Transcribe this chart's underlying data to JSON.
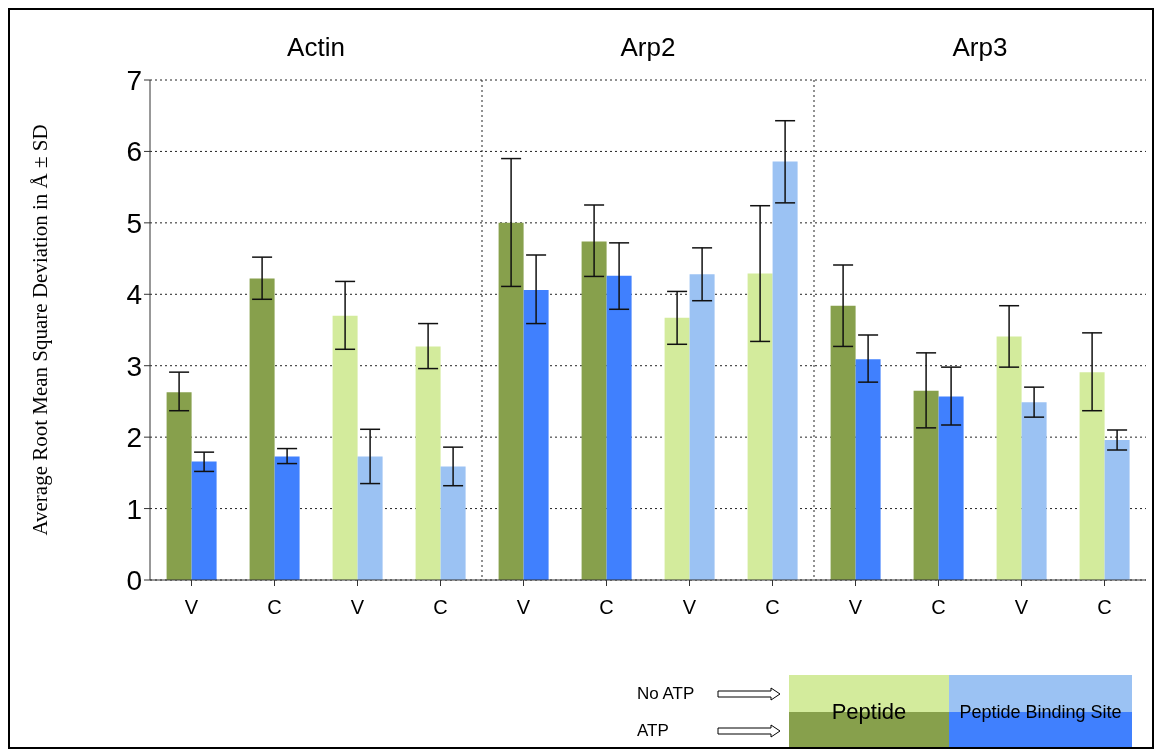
{
  "chart_data": {
    "type": "bar",
    "ylabel": "Average Root Mean Square Deviation in Å ± SD",
    "categories": [
      "V",
      "C",
      "V",
      "C",
      "V",
      "C",
      "V",
      "C",
      "V",
      "C",
      "V",
      "C"
    ],
    "series": [
      {
        "name": "Peptide",
        "colors": [
          "#87a04c",
          "#87a04c",
          "#d3eb9c",
          "#d3eb9c",
          "#87a04c",
          "#87a04c",
          "#d3eb9c",
          "#d3eb9c",
          "#87a04c",
          "#87a04c",
          "#d3eb9c",
          "#d3eb9c"
        ],
        "values": [
          2.63,
          4.22,
          3.7,
          3.27,
          5.0,
          4.74,
          3.67,
          4.29,
          3.84,
          2.65,
          3.41,
          2.91
        ],
        "errors": [
          [
            2.37,
            2.91
          ],
          [
            3.93,
            4.52
          ],
          [
            3.23,
            4.18
          ],
          [
            2.96,
            3.59
          ],
          [
            4.11,
            5.9
          ],
          [
            4.25,
            5.25
          ],
          [
            3.3,
            4.04
          ],
          [
            3.34,
            5.24
          ],
          [
            3.27,
            4.41
          ],
          [
            2.13,
            3.18
          ],
          [
            2.98,
            3.84
          ],
          [
            2.37,
            3.46
          ]
        ]
      },
      {
        "name": "Peptide Binding Site",
        "colors": [
          "#4080fe",
          "#4080fe",
          "#9bc2f3",
          "#9bc2f3",
          "#4080fe",
          "#4080fe",
          "#9bc2f3",
          "#9bc2f3",
          "#4080fe",
          "#4080fe",
          "#9bc2f3",
          "#9bc2f3"
        ],
        "values": [
          1.66,
          1.73,
          1.73,
          1.59,
          4.06,
          4.26,
          4.28,
          5.86,
          3.09,
          2.57,
          2.49,
          1.96
        ],
        "errors": [
          [
            1.52,
            1.79
          ],
          [
            1.63,
            1.84
          ],
          [
            1.35,
            2.11
          ],
          [
            1.32,
            1.86
          ],
          [
            3.59,
            4.55
          ],
          [
            3.79,
            4.72
          ],
          [
            3.91,
            4.65
          ],
          [
            5.28,
            6.43
          ],
          [
            2.77,
            3.43
          ],
          [
            2.17,
            2.98
          ],
          [
            2.28,
            2.7
          ],
          [
            1.82,
            2.1
          ]
        ]
      }
    ],
    "annotations": [
      "Actin",
      "Arp2",
      "Arp3",
      "No ATP",
      "ATP"
    ],
    "ylim": [
      0,
      7
    ],
    "yticks": [
      0,
      1,
      2,
      3,
      4,
      5,
      6,
      7
    ],
    "grid": "y",
    "legend": "bottom right"
  }
}
